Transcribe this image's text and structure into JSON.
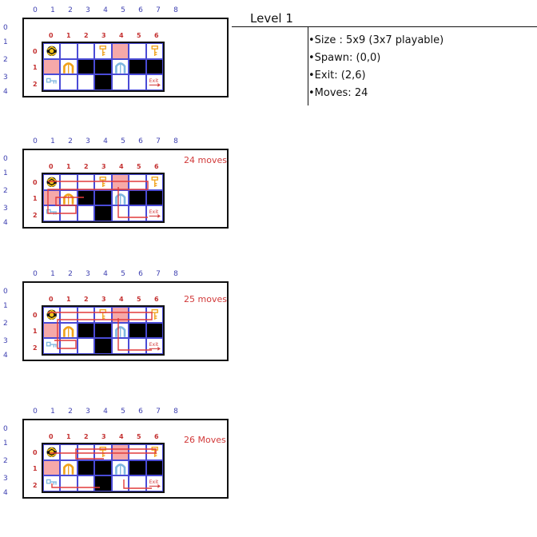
{
  "level": {
    "title": "Level 1",
    "info": [
      "•Size : 5x9 (3x7 playable)",
      "•Spawn: (0,0)",
      "•Exit: (2,6)",
      "•Moves: 24"
    ]
  },
  "outer_cols": [
    "0",
    "1",
    "2",
    "3",
    "4",
    "5",
    "6",
    "7",
    "8"
  ],
  "outer_rows": [
    "0",
    "1",
    "2",
    "3",
    "4"
  ],
  "inner_cols": [
    "0",
    "1",
    "2",
    "3",
    "4",
    "5",
    "6"
  ],
  "inner_rows": [
    "0",
    "1",
    "2"
  ],
  "exit_label": "Exit",
  "grid": [
    [
      "spawn",
      "empty",
      "empty",
      "key-orange",
      "pink",
      "empty",
      "key-orange"
    ],
    [
      "pink",
      "door-orange",
      "wall",
      "wall",
      "door-blue",
      "wall",
      "wall"
    ],
    [
      "key-blue",
      "empty",
      "empty",
      "wall",
      "empty",
      "empty",
      "exit"
    ]
  ],
  "boards": [
    {
      "id": "original",
      "moves_label": ""
    },
    {
      "id": "solution-24",
      "moves_label": "24 moves"
    },
    {
      "id": "solution-25",
      "moves_label": "25 moves"
    },
    {
      "id": "solution-26",
      "moves_label": "26 Moves"
    }
  ],
  "colors": {
    "grid_blue": "#4a4bd6",
    "path_red": "#e23b3b",
    "pink": "#f6a9a9",
    "key_orange": "#f0a21a",
    "key_blue": "#7fb7e0"
  }
}
